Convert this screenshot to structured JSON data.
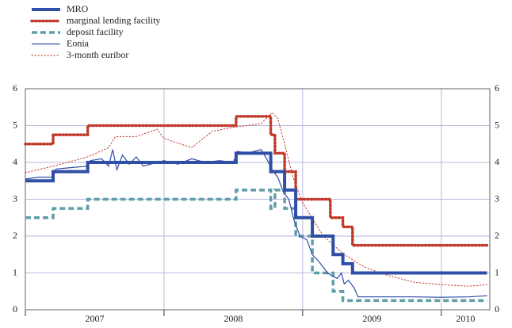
{
  "chart_data": {
    "type": "line",
    "xlim": [
      2007,
      2010.35
    ],
    "xticks": [
      {
        "value": 2007,
        "label": "2007"
      },
      {
        "value": 2008,
        "label": "2008"
      },
      {
        "value": 2009,
        "label": "2009"
      },
      {
        "value": 2010,
        "label": "2010"
      }
    ],
    "ylim": [
      0,
      6
    ],
    "yticks": [
      0,
      1,
      2,
      3,
      4,
      5,
      6
    ],
    "grid": true,
    "right_axis_labels": true,
    "legend": "top-left",
    "series": [
      {
        "name": "MRO",
        "color": "#2f4ea6",
        "style": "thick",
        "x": [
          2007.0,
          2007.2,
          2007.2,
          2007.45,
          2007.45,
          2008.52,
          2008.52,
          2008.77,
          2008.77,
          2008.87,
          2008.87,
          2008.95,
          2008.95,
          2009.07,
          2009.07,
          2009.22,
          2009.22,
          2009.29,
          2009.29,
          2009.36,
          2009.36,
          2010.33
        ],
        "values": [
          3.5,
          3.5,
          3.75,
          3.75,
          4.0,
          4.0,
          4.25,
          4.25,
          3.75,
          3.75,
          3.25,
          3.25,
          2.5,
          2.5,
          2.0,
          2.0,
          1.5,
          1.5,
          1.25,
          1.25,
          1.0,
          1.0
        ]
      },
      {
        "name": "marginal lending facility",
        "color": "#c0392b",
        "style": "dotted-thick",
        "x": [
          2007.0,
          2007.2,
          2007.2,
          2007.45,
          2007.45,
          2008.52,
          2008.52,
          2008.77,
          2008.77,
          2008.8,
          2008.8,
          2008.87,
          2008.87,
          2008.95,
          2008.95,
          2009.2,
          2009.2,
          2009.29,
          2009.29,
          2009.36,
          2009.36,
          2010.33
        ],
        "values": [
          4.5,
          4.5,
          4.75,
          4.75,
          5.0,
          5.0,
          5.25,
          5.25,
          4.75,
          4.75,
          4.25,
          4.25,
          3.75,
          3.75,
          3.0,
          3.0,
          2.5,
          2.5,
          2.25,
          2.25,
          1.75,
          1.75
        ]
      },
      {
        "name": "deposit facility",
        "color": "#5f9ea8",
        "style": "dashed",
        "x": [
          2007.0,
          2007.2,
          2007.2,
          2007.45,
          2007.45,
          2008.52,
          2008.52,
          2008.77,
          2008.77,
          2008.8,
          2008.8,
          2008.87,
          2008.87,
          2008.95,
          2008.95,
          2009.07,
          2009.07,
          2009.22,
          2009.22,
          2009.29,
          2009.29,
          2010.33
        ],
        "values": [
          2.5,
          2.5,
          2.75,
          2.75,
          3.0,
          3.0,
          3.25,
          3.25,
          2.75,
          2.75,
          3.25,
          3.25,
          2.75,
          2.75,
          2.0,
          2.0,
          1.0,
          1.0,
          0.5,
          0.5,
          0.25,
          0.25
        ]
      },
      {
        "name": "Eonia",
        "color": "#2f4ea6",
        "style": "thin",
        "x": [
          2007.0,
          2007.1,
          2007.2,
          2007.22,
          2007.3,
          2007.45,
          2007.47,
          2007.55,
          2007.6,
          2007.63,
          2007.66,
          2007.7,
          2007.75,
          2007.8,
          2007.85,
          2007.95,
          2008.0,
          2008.1,
          2008.2,
          2008.3,
          2008.4,
          2008.5,
          2008.53,
          2008.6,
          2008.7,
          2008.74,
          2008.78,
          2008.82,
          2008.86,
          2008.9,
          2008.94,
          2008.98,
          2009.03,
          2009.07,
          2009.12,
          2009.18,
          2009.22,
          2009.25,
          2009.28,
          2009.3,
          2009.33,
          2009.37,
          2009.4,
          2009.6,
          2009.8,
          2010.0,
          2010.2,
          2010.33
        ],
        "values": [
          3.55,
          3.6,
          3.6,
          3.82,
          3.85,
          3.9,
          4.05,
          4.1,
          3.9,
          4.35,
          3.8,
          4.2,
          3.95,
          4.15,
          3.9,
          4.0,
          4.05,
          3.95,
          4.1,
          4.0,
          4.05,
          4.0,
          4.3,
          4.25,
          4.35,
          4.1,
          3.8,
          3.6,
          3.2,
          3.0,
          2.4,
          2.0,
          1.9,
          1.5,
          1.3,
          1.0,
          0.9,
          0.85,
          1.0,
          0.7,
          0.8,
          0.6,
          0.35,
          0.35,
          0.35,
          0.34,
          0.35,
          0.38
        ]
      },
      {
        "name": "3-month euribor",
        "color": "#c0392b",
        "style": "dotted-thin",
        "x": [
          2007.0,
          2007.2,
          2007.45,
          2007.6,
          2007.65,
          2007.8,
          2007.95,
          2008.0,
          2008.2,
          2008.35,
          2008.5,
          2008.7,
          2008.78,
          2008.82,
          2008.87,
          2008.93,
          2009.0,
          2009.15,
          2009.3,
          2009.45,
          2009.6,
          2009.8,
          2010.0,
          2010.2,
          2010.33
        ],
        "values": [
          3.72,
          3.9,
          4.15,
          4.4,
          4.7,
          4.7,
          4.9,
          4.65,
          4.4,
          4.85,
          4.95,
          5.05,
          5.35,
          5.2,
          4.5,
          3.6,
          2.9,
          2.0,
          1.5,
          1.15,
          0.95,
          0.75,
          0.68,
          0.64,
          0.68
        ]
      }
    ]
  }
}
